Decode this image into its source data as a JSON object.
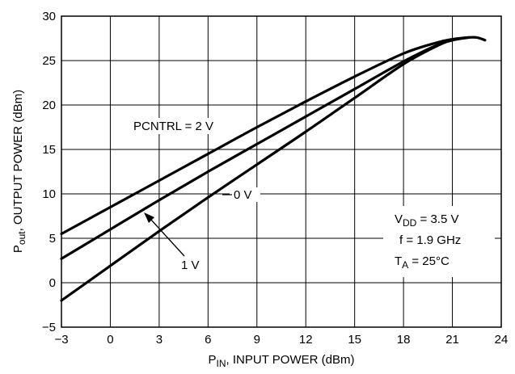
{
  "chart_data": {
    "type": "line",
    "xlabel": {
      "main": "P",
      "sub": "IN",
      "rest": ", INPUT POWER (dBm)"
    },
    "ylabel": {
      "main": "P",
      "sub": "out",
      "rest": ", OUTPUT POWER (dBm)"
    },
    "xlim": [
      -3,
      24
    ],
    "ylim": [
      -5,
      30
    ],
    "xticks": [
      -3,
      0,
      3,
      6,
      9,
      12,
      15,
      18,
      21,
      24
    ],
    "yticks": [
      -5,
      0,
      5,
      10,
      15,
      20,
      25,
      30
    ],
    "xtick_labels": [
      "−3",
      "0",
      "3",
      "6",
      "9",
      "12",
      "15",
      "18",
      "21",
      "24"
    ],
    "ytick_labels": [
      "−5",
      "0",
      "5",
      "10",
      "15",
      "20",
      "25",
      "30"
    ],
    "grid": true,
    "series": [
      {
        "name": "PCNTRL = 2 V",
        "x": [
          -3,
          0,
          3,
          6,
          9,
          12,
          15,
          18,
          20,
          21,
          22,
          22.5,
          23
        ],
        "y": [
          5.5,
          8.5,
          11.5,
          14.5,
          17.5,
          20.4,
          23.2,
          25.8,
          27.0,
          27.4,
          27.6,
          27.6,
          27.3
        ]
      },
      {
        "name": "1 V",
        "x": [
          -3,
          0,
          3,
          6,
          9,
          12,
          15,
          18,
          20,
          21,
          22
        ],
        "y": [
          2.7,
          6.0,
          9.3,
          12.5,
          15.6,
          18.7,
          21.8,
          24.9,
          26.7,
          27.3,
          27.6
        ]
      },
      {
        "name": "0 V",
        "x": [
          -3,
          0,
          3,
          6,
          9,
          12,
          15,
          18,
          20,
          21,
          22
        ],
        "y": [
          -2.0,
          1.9,
          5.8,
          9.6,
          13.3,
          17.0,
          20.8,
          24.6,
          26.6,
          27.3,
          27.6
        ]
      }
    ],
    "annotations": {
      "pcntrl_2v": "PCNTRL = 2 V",
      "v0": "0 V",
      "v1": "1 V",
      "conditions": [
        {
          "main": "V",
          "sub": "DD",
          "rest": " = 3.5 V"
        },
        {
          "main": "f = 1.9 GHz",
          "sub": "",
          "rest": ""
        },
        {
          "main": "T",
          "sub": "A",
          "rest": " = 25°C"
        }
      ]
    }
  }
}
